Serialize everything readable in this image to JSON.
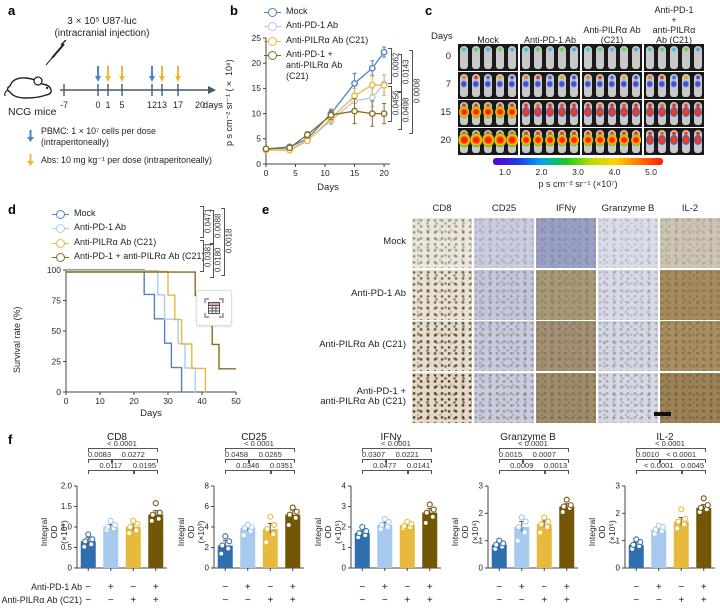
{
  "panel_labels": {
    "a": "a",
    "b": "b",
    "c": "c",
    "d": "d",
    "e": "e",
    "f": "f"
  },
  "panel_a": {
    "injection_line1": "3 × 10⁵ U87-luc",
    "injection_line2": "(intracranial injection)",
    "mice_label": "NCG mice",
    "timeline": {
      "tick_days": [
        -7,
        0,
        1,
        5,
        12,
        13,
        17
      ],
      "tick_labels": [
        "-7",
        "0",
        "1",
        "5",
        "12",
        "13",
        "17"
      ],
      "end_label": "20",
      "unit_label": "days",
      "pbmc_days": [
        0,
        12
      ],
      "abs_days": [
        1,
        5,
        13,
        17
      ],
      "pbmc_color": "#4a84c8",
      "abs_color": "#e8b93d"
    },
    "legend": [
      {
        "color": "#4a84c8",
        "text": "PBMC: 1 × 10⁷ cells per dose (intraperitoneally)"
      },
      {
        "color": "#e8b93d",
        "text": "Abs: 10 mg kg⁻¹ per dose (intraperitoneally)"
      }
    ]
  },
  "chart_data": [
    {
      "panel": "b",
      "type": "line",
      "xlabel": "Days",
      "ylabel": "p s cm⁻² sr⁻¹ (× 10⁸)",
      "x": [
        0,
        4,
        7,
        11,
        15,
        18,
        20
      ],
      "xticks": [
        0,
        5,
        10,
        15,
        20
      ],
      "yticks": [
        0,
        5,
        10,
        15,
        20,
        25
      ],
      "ylim": [
        0,
        25
      ],
      "xlim": [
        0,
        21
      ],
      "series": [
        {
          "name": "Mock",
          "color": "#4f82c2",
          "values": [
            3,
            3.4,
            5,
            10,
            16,
            19,
            22.2
          ],
          "err": [
            0.4,
            0.4,
            0.6,
            0.9,
            2,
            1.5,
            1
          ]
        },
        {
          "name": "Anti-PD-1 Ab",
          "color": "#a9cdee",
          "values": [
            2.7,
            2.9,
            4.7,
            8.6,
            12.5,
            13.2,
            15.9
          ],
          "err": [
            0.3,
            0.4,
            0.5,
            0.8,
            1.5,
            1.8,
            1.8
          ]
        },
        {
          "name": "Anti-PILRα Ab (C21)",
          "color": "#e6b845",
          "values": [
            2.8,
            2.7,
            4.6,
            9,
            13.5,
            15.7,
            15.6
          ],
          "err": [
            0.3,
            0.3,
            0.5,
            1,
            1.5,
            2,
            2
          ]
        },
        {
          "name": "Anti-PD-1 + anti-PILRα Ab (C21)",
          "color": "#8a6c1e",
          "values": [
            3,
            3.2,
            5.8,
            9.7,
            10.5,
            10,
            10
          ],
          "err": [
            0.3,
            0.3,
            0.6,
            0.9,
            2.5,
            2.5,
            2
          ]
        }
      ],
      "legend_lines": [
        [
          "Mock"
        ],
        [
          "Anti-PD-1 Ab"
        ],
        [
          "Anti-PILRα Ab (C21)"
        ],
        [
          "Anti-PD-1 +",
          "anti-PILRα Ab",
          "(C21)"
        ]
      ],
      "pvalues": [
        "0.0062",
        "0.0456",
        "0.0143",
        "0.0498",
        "0.0008"
      ]
    },
    {
      "panel": "d",
      "type": "survival",
      "xlabel": "Days",
      "ylabel": "Survival rate (%)",
      "xticks": [
        0,
        10,
        20,
        30,
        40,
        50
      ],
      "yticks": [
        0,
        25,
        50,
        75,
        100
      ],
      "xlim": [
        0,
        50
      ],
      "ylim": [
        0,
        100
      ],
      "series": [
        {
          "name": "Mock",
          "color": "#4f82c2",
          "drops": [
            [
              23,
              80
            ],
            [
              26,
              60
            ],
            [
              29,
              40
            ],
            [
              31,
              20
            ],
            [
              34,
              0
            ]
          ],
          "end": 34
        },
        {
          "name": "Anti-PD-1 Ab",
          "color": "#a9cdee",
          "drops": [
            [
              27,
              80
            ],
            [
              29,
              60
            ],
            [
              33,
              40
            ],
            [
              35,
              20
            ],
            [
              38,
              0
            ]
          ],
          "end": 38
        },
        {
          "name": "Anti-PILRα Ab (C21)",
          "color": "#e6b845",
          "drops": [
            [
              30,
              80
            ],
            [
              32,
              60
            ],
            [
              34,
              40
            ],
            [
              37,
              20
            ],
            [
              41,
              0
            ]
          ],
          "end": 41
        },
        {
          "name": "Anti-PD-1 + anti-PILRα Ab (C21)",
          "color": "#8a6c1e",
          "drops": [
            [
              38,
              80
            ],
            [
              41,
              60
            ],
            [
              43,
              40
            ],
            [
              45,
              20
            ]
          ],
          "end": 50
        }
      ],
      "pvalues": [
        "0.0471",
        "0.0381",
        "0.0088",
        "0.0180",
        "0.0018"
      ]
    },
    {
      "panel": "f",
      "type": "bar",
      "title": "CD8",
      "ylabel": [
        "Integral",
        "OD (×10⁵)"
      ],
      "ylim": [
        0,
        2
      ],
      "yticks": [
        "0",
        "0.5",
        "1.0",
        "1.5",
        "2.0"
      ],
      "values": [
        0.65,
        1.0,
        1.0,
        1.3
      ],
      "err": [
        0.1,
        0.06,
        0.1,
        0.1
      ],
      "dots": [
        [
          0.52,
          0.58,
          0.65,
          0.7,
          0.82
        ],
        [
          0.93,
          0.97,
          1.0,
          1.05,
          1.15
        ],
        [
          0.85,
          0.92,
          1.0,
          1.08,
          1.15
        ],
        [
          1.15,
          1.2,
          1.3,
          1.35,
          1.58
        ]
      ],
      "pvalues": [
        "< 0.0001",
        "0.0083",
        "0.0272",
        "0.0117",
        "0.0195"
      ]
    },
    {
      "panel": "f",
      "type": "bar",
      "title": "CD25",
      "ylabel": [
        "Integral",
        "OD (×10³)"
      ],
      "ylim": [
        0,
        8
      ],
      "yticks": [
        "0",
        "2",
        "4",
        "6",
        "8"
      ],
      "values": [
        2.2,
        3.9,
        3.8,
        5.2
      ],
      "err": [
        0.5,
        0.3,
        0.55,
        0.45
      ],
      "dots": [
        [
          1.4,
          1.9,
          2.2,
          2.6,
          3.1
        ],
        [
          3.2,
          3.6,
          3.9,
          4.0,
          4.2
        ],
        [
          2.5,
          3.3,
          3.8,
          4.2,
          5.0
        ],
        [
          4.2,
          4.9,
          5.2,
          5.5,
          5.9
        ]
      ],
      "pvalues": [
        "< 0.0001",
        "0.0458",
        "0.0265",
        "0.0346",
        "0.0351"
      ]
    },
    {
      "panel": "f",
      "type": "bar",
      "title": "IFNγ",
      "ylabel": [
        "Integral",
        "OD (×10⁵)"
      ],
      "ylim": [
        0,
        4
      ],
      "yticks": [
        "0",
        "1",
        "2",
        "3",
        "4"
      ],
      "values": [
        1.7,
        2.1,
        2.1,
        2.7
      ],
      "err": [
        0.12,
        0.12,
        0.08,
        0.2
      ],
      "dots": [
        [
          1.5,
          1.6,
          1.7,
          1.8,
          2.0
        ],
        [
          1.9,
          2.0,
          2.1,
          2.25,
          2.4
        ],
        [
          1.95,
          2.0,
          2.05,
          2.15,
          2.25
        ],
        [
          2.2,
          2.5,
          2.7,
          2.85,
          3.1
        ]
      ],
      "pvalues": [
        "< 0.0001",
        "0.0307",
        "0.0221",
        "0.0477",
        "0.0141"
      ]
    },
    {
      "panel": "f",
      "type": "bar",
      "title": "Granzyme B",
      "ylabel": [
        "Integral",
        "OD (×10⁴)"
      ],
      "ylim": [
        0,
        3
      ],
      "yticks": [
        "0",
        "1",
        "2",
        "3"
      ],
      "values": [
        0.85,
        1.5,
        1.6,
        2.25
      ],
      "err": [
        0.08,
        0.2,
        0.12,
        0.1
      ],
      "dots": [
        [
          0.7,
          0.78,
          0.85,
          0.9,
          1.0
        ],
        [
          1.0,
          1.3,
          1.5,
          1.7,
          1.85
        ],
        [
          1.3,
          1.5,
          1.6,
          1.7,
          1.85
        ],
        [
          2.05,
          2.2,
          2.25,
          2.3,
          2.5
        ]
      ],
      "pvalues": [
        "< 0.0001",
        "0.0015",
        "0.0007",
        "0.0009",
        "0.0013"
      ]
    },
    {
      "panel": "f",
      "type": "bar",
      "title": "IL-2",
      "ylabel": [
        "Integral",
        "OD (×10⁵)"
      ],
      "ylim": [
        0,
        3
      ],
      "yticks": [
        "0",
        "1",
        "2",
        "3"
      ],
      "values": [
        0.85,
        1.4,
        1.7,
        2.2
      ],
      "err": [
        0.1,
        0.08,
        0.15,
        0.12
      ],
      "dots": [
        [
          0.7,
          0.8,
          0.85,
          0.95,
          1.05
        ],
        [
          1.25,
          1.35,
          1.4,
          1.5,
          1.55
        ],
        [
          1.45,
          1.6,
          1.7,
          1.8,
          2.15
        ],
        [
          2.05,
          2.15,
          2.2,
          2.3,
          2.55
        ]
      ],
      "pvalues": [
        "< 0.0001",
        "0.0010",
        "< 0.0001",
        "< 0.0001",
        "0.0045"
      ]
    }
  ],
  "panel_c": {
    "days_header": "Days",
    "group_headers": [
      [
        "Mock"
      ],
      [
        "Anti-PD-1 Ab"
      ],
      [
        "Anti-PILRα Ab",
        "(C21)"
      ],
      [
        "Anti-PD-1 +",
        "anti-PILRα Ab (C21)"
      ]
    ],
    "day_labels": [
      "0",
      "7",
      "15",
      "20"
    ],
    "mice_per_group": 5,
    "signal_by_day_group": [
      [
        1,
        1,
        1,
        1
      ],
      [
        2,
        2,
        2,
        2
      ],
      [
        4,
        3,
        3,
        3
      ],
      [
        5,
        4,
        4,
        3
      ]
    ],
    "scale": {
      "ticks": [
        "1.0",
        "2.0",
        "3.0",
        "4.0",
        "5.0"
      ],
      "label": "p s cm⁻² sr⁻¹ (×10⁷)",
      "colors": [
        "#5a00c8",
        "#2338e8",
        "#00a8e8",
        "#18c828",
        "#b4dc00",
        "#ffd200",
        "#ff7800",
        "#ff1e00"
      ]
    }
  },
  "panel_e": {
    "markers": [
      "CD8",
      "CD25",
      "IFNγ",
      "Granzyme B",
      "IL-2"
    ],
    "row_labels": [
      [
        "Mock"
      ],
      [
        "Anti-PD-1 Ab"
      ],
      [
        "Anti-PILRα Ab (C21)"
      ],
      [
        "Anti-PD-1 +",
        "anti-PILRα Ab (C21)"
      ]
    ],
    "tile_colors": [
      [
        "#ebe6dd",
        "#c9cddf",
        "#9aa1c4",
        "#d9dce9",
        "#ccc5b3"
      ],
      [
        "#e8e1d4",
        "#c2c7dc",
        "#a79a79",
        "#d6d9e7",
        "#a48c5e"
      ],
      [
        "#e5ddcd",
        "#c5cadd",
        "#a29175",
        "#d3d6e5",
        "#a78f61"
      ],
      [
        "#e3d9c6",
        "#c8ccde",
        "#9e8d69",
        "#d5d8e6",
        "#9b8355"
      ]
    ]
  },
  "panel_f": {
    "sign_rows": [
      {
        "label": "Anti-PD-1 Ab",
        "signs": [
          "−",
          "+",
          "−",
          "+"
        ]
      },
      {
        "label": "Anti-PILRα Ab (C21)",
        "signs": [
          "−",
          "−",
          "+",
          "+"
        ]
      }
    ],
    "bar_colors": [
      "#2f6fad",
      "#a7c9ee",
      "#e7b93c",
      "#745607"
    ]
  }
}
